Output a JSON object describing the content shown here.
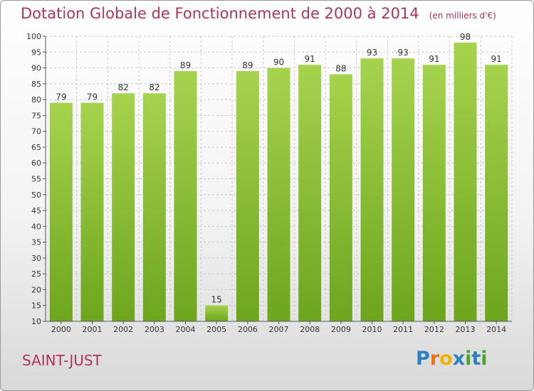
{
  "title": "Dotation Globale de Fonctionnement de 2000 à 2014",
  "subtitle": "(en milliers d'€)",
  "place": "SAINT-JUST",
  "logo": {
    "letters": [
      "P",
      "r",
      "o",
      "x",
      "i",
      "t",
      "i"
    ],
    "colors": [
      "#2e7fc4",
      "#e8731c",
      "#f0b400",
      "#2e7fc4",
      "#4aa52e",
      "#2e7fc4",
      "#4aa52e"
    ]
  },
  "colors": {
    "bar_light": "#a6d34e",
    "bar_dark": "#6ea51e",
    "text": "#b0335a",
    "grid": "#c8c8c8"
  },
  "chart_data": {
    "type": "bar",
    "categories": [
      "2000",
      "2001",
      "2002",
      "2003",
      "2004",
      "2005",
      "2006",
      "2007",
      "2008",
      "2009",
      "2010",
      "2011",
      "2012",
      "2013",
      "2014"
    ],
    "values": [
      79,
      79,
      82,
      82,
      89,
      15,
      89,
      90,
      91,
      88,
      93,
      93,
      91,
      98,
      91
    ],
    "ylim": [
      10,
      100
    ],
    "yticks": [
      10,
      15,
      20,
      25,
      30,
      35,
      40,
      45,
      50,
      55,
      60,
      65,
      70,
      75,
      80,
      85,
      90,
      95,
      100
    ],
    "grid": true,
    "data_labels": true
  }
}
